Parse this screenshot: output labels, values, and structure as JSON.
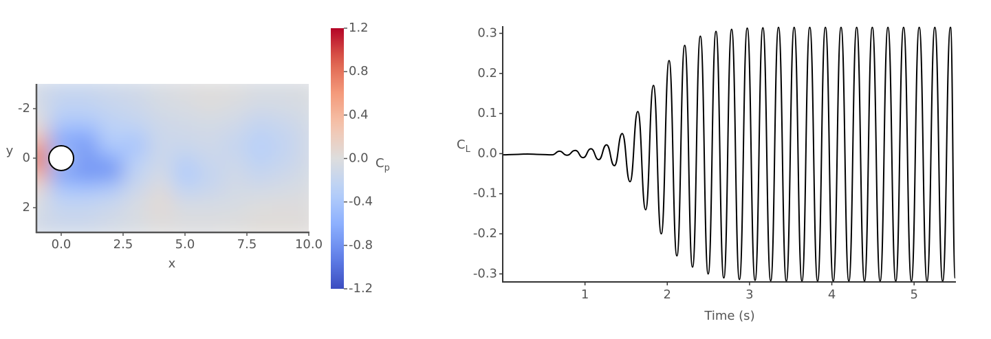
{
  "chart_data": [
    {
      "type": "contour",
      "xlabel": "x",
      "ylabel": "y",
      "xlim": [
        -1,
        10
      ],
      "ylim": [
        -3,
        3
      ],
      "y_reversed": true,
      "xticks": [
        {
          "value": 0,
          "label": "0.0"
        },
        2.5,
        {
          "value": 5,
          "label": "5.0"
        },
        7.5,
        {
          "value": 10,
          "label": "10.0"
        }
      ],
      "yticks": [
        -2,
        0,
        2
      ],
      "x": [
        -1,
        0,
        1,
        2,
        3,
        4,
        5,
        6,
        7,
        8,
        9,
        10
      ],
      "y": [
        -3,
        -2.5,
        -2,
        -1.5,
        -1,
        -0.5,
        0,
        0.5,
        1,
        1.5,
        2,
        2.5,
        3
      ],
      "values": [
        [
          -0.1,
          -0.15,
          -0.15,
          -0.12,
          -0.1,
          -0.05,
          -0.02,
          0.0,
          -0.02,
          -0.05,
          -0.05,
          -0.03
        ],
        [
          -0.1,
          -0.2,
          -0.2,
          -0.15,
          -0.12,
          -0.05,
          -0.02,
          0.02,
          0.0,
          -0.05,
          -0.05,
          -0.03
        ],
        [
          -0.05,
          -0.25,
          -0.25,
          -0.2,
          -0.15,
          -0.08,
          -0.05,
          0.0,
          -0.05,
          -0.1,
          -0.08,
          -0.05
        ],
        [
          0.0,
          -0.35,
          -0.35,
          -0.25,
          -0.2,
          -0.12,
          -0.1,
          -0.08,
          -0.1,
          -0.2,
          -0.15,
          -0.08
        ],
        [
          0.2,
          -0.55,
          -0.6,
          -0.3,
          -0.3,
          -0.15,
          -0.12,
          -0.1,
          -0.15,
          -0.25,
          -0.2,
          -0.1
        ],
        [
          0.5,
          -0.7,
          -0.75,
          -0.35,
          -0.45,
          -0.15,
          -0.15,
          -0.12,
          -0.2,
          -0.3,
          -0.22,
          -0.1
        ],
        [
          0.9,
          -0.3,
          -0.7,
          -0.6,
          -0.3,
          -0.15,
          -0.25,
          -0.15,
          -0.15,
          -0.28,
          -0.2,
          -0.1
        ],
        [
          0.5,
          -0.75,
          -0.8,
          -0.85,
          -0.25,
          -0.1,
          -0.35,
          -0.2,
          -0.12,
          -0.2,
          -0.15,
          -0.08
        ],
        [
          0.2,
          -0.5,
          -0.6,
          -0.5,
          -0.2,
          -0.05,
          -0.3,
          -0.2,
          -0.1,
          -0.15,
          -0.1,
          -0.05
        ],
        [
          0.0,
          -0.3,
          -0.3,
          -0.25,
          -0.1,
          0.05,
          -0.15,
          -0.12,
          -0.08,
          -0.05,
          -0.05,
          -0.02
        ],
        [
          -0.05,
          -0.2,
          -0.2,
          -0.15,
          -0.05,
          0.05,
          -0.05,
          -0.05,
          -0.05,
          0.0,
          0.02,
          0.0
        ],
        [
          -0.1,
          -0.15,
          -0.15,
          -0.1,
          -0.05,
          0.02,
          -0.02,
          -0.02,
          0.0,
          0.03,
          0.03,
          0.02
        ],
        [
          -0.1,
          -0.12,
          -0.12,
          -0.08,
          -0.05,
          0.0,
          -0.02,
          -0.02,
          0.0,
          0.03,
          0.03,
          0.02
        ]
      ],
      "colormap": "coolwarm",
      "clim": [
        -1.2,
        1.2
      ],
      "colorbar": {
        "label": {
          "text": "C",
          "subscript": "p"
        },
        "ticks": [
          {
            "value": 1.2,
            "label": "1.2"
          },
          {
            "value": 0.8,
            "label": "0.8"
          },
          {
            "value": 0.4,
            "label": "0.4"
          },
          {
            "value": 0,
            "label": "0.0"
          },
          {
            "value": -0.4,
            "label": "-0.4"
          },
          {
            "value": -0.8,
            "label": "-0.8"
          },
          {
            "value": -1.2,
            "label": "-1.2"
          }
        ]
      },
      "obstacle": {
        "center": [
          0,
          0
        ],
        "radius": 0.5
      }
    },
    {
      "type": "line",
      "xlabel": "Time (s)",
      "ylabel": {
        "text": "C",
        "subscript": "L"
      },
      "xlim": [
        0,
        5.5
      ],
      "ylim": [
        -0.32,
        0.318
      ],
      "xticks": [
        1,
        2,
        3,
        4,
        5
      ],
      "yticks": [
        0.3,
        0.2,
        0.1,
        {
          "value": 0,
          "label": "0.0"
        },
        -0.1,
        -0.2,
        -0.3
      ],
      "color": "#000000",
      "x": [
        0,
        0.15,
        0.3,
        0.45,
        0.6,
        0.69,
        0.78,
        0.882,
        0.977,
        1.072,
        1.167,
        1.262,
        1.357,
        1.452,
        1.547,
        1.642,
        1.737,
        1.832,
        1.927,
        2.022,
        2.117,
        2.212,
        2.307,
        2.402,
        2.497,
        2.592,
        2.687,
        2.782,
        2.877,
        2.972,
        3.067,
        3.162,
        3.257,
        3.352,
        3.447,
        3.542,
        3.637,
        3.732,
        3.827,
        3.922,
        4.017,
        4.112,
        4.207,
        4.302,
        4.397,
        4.492,
        4.587,
        4.682,
        4.777,
        4.872,
        4.967,
        5.062,
        5.157,
        5.252,
        5.347,
        5.442,
        5.5
      ],
      "values": [
        -0.003,
        -0.002,
        -0.001,
        -0.002,
        -0.003,
        0.006,
        -0.004,
        0.008,
        -0.01,
        0.012,
        -0.015,
        0.022,
        -0.03,
        0.05,
        -0.07,
        0.105,
        -0.14,
        0.17,
        -0.2,
        0.232,
        -0.255,
        0.27,
        -0.283,
        0.293,
        -0.3,
        0.305,
        -0.31,
        0.31,
        -0.314,
        0.313,
        -0.316,
        0.314,
        -0.317,
        0.315,
        -0.318,
        0.315,
        -0.318,
        0.315,
        -0.318,
        0.315,
        -0.318,
        0.315,
        -0.318,
        0.315,
        -0.318,
        0.315,
        -0.318,
        0.315,
        -0.318,
        0.315,
        -0.318,
        0.315,
        -0.318,
        0.315,
        -0.318,
        0.315,
        -0.31
      ]
    }
  ]
}
